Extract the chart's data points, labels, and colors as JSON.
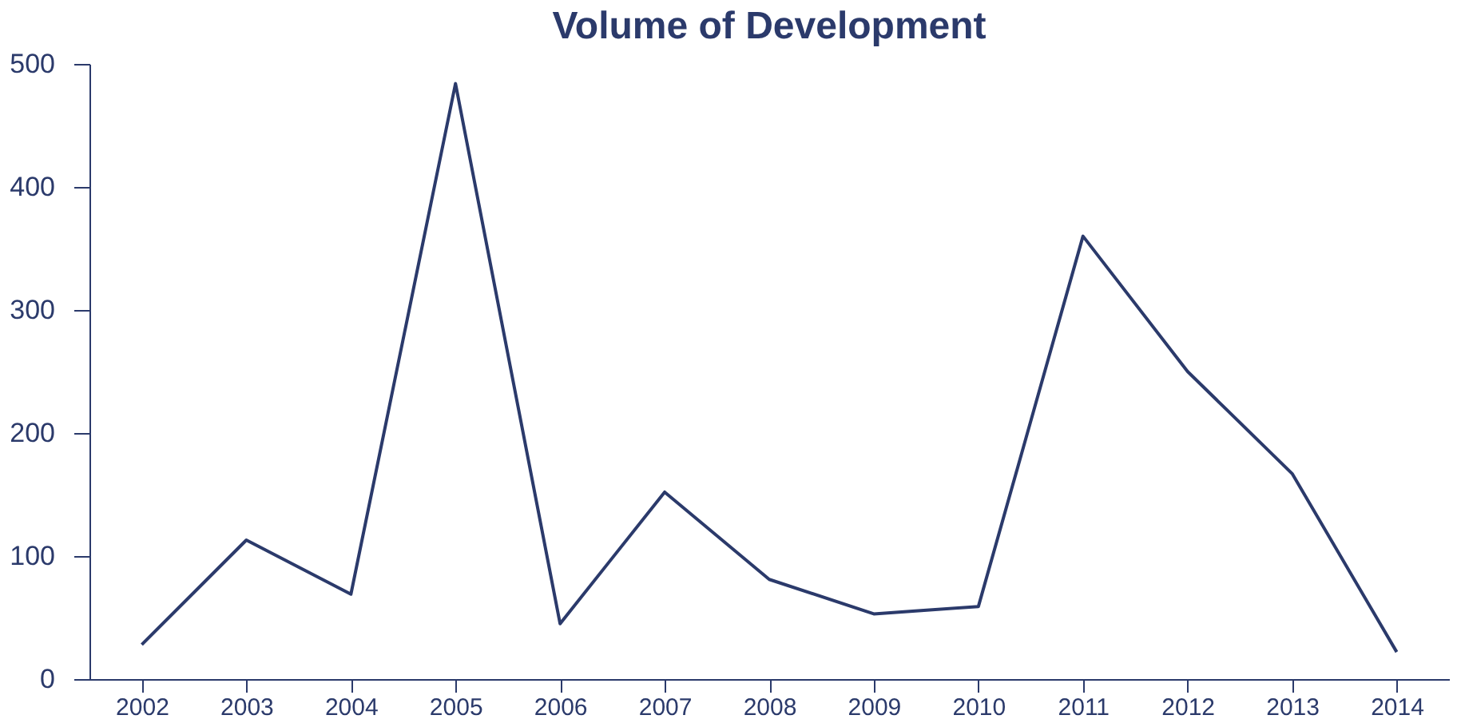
{
  "chart_data": {
    "type": "line",
    "title": "Volume of Development",
    "categories": [
      "2002",
      "2003",
      "2004",
      "2005",
      "2006",
      "2007",
      "2008",
      "2009",
      "2010",
      "2011",
      "2012",
      "2013",
      "2014"
    ],
    "series": [
      {
        "color": "#2b3a6b",
        "values": [
          28,
          113,
          69,
          484,
          45,
          152,
          81,
          53,
          59,
          360,
          250,
          167,
          22
        ]
      }
    ],
    "ylim": [
      0,
      500
    ],
    "yticks": [
      0,
      100,
      200,
      300,
      400,
      500
    ],
    "grid": false,
    "legend": false,
    "marker": "none",
    "line_style": "solid"
  }
}
